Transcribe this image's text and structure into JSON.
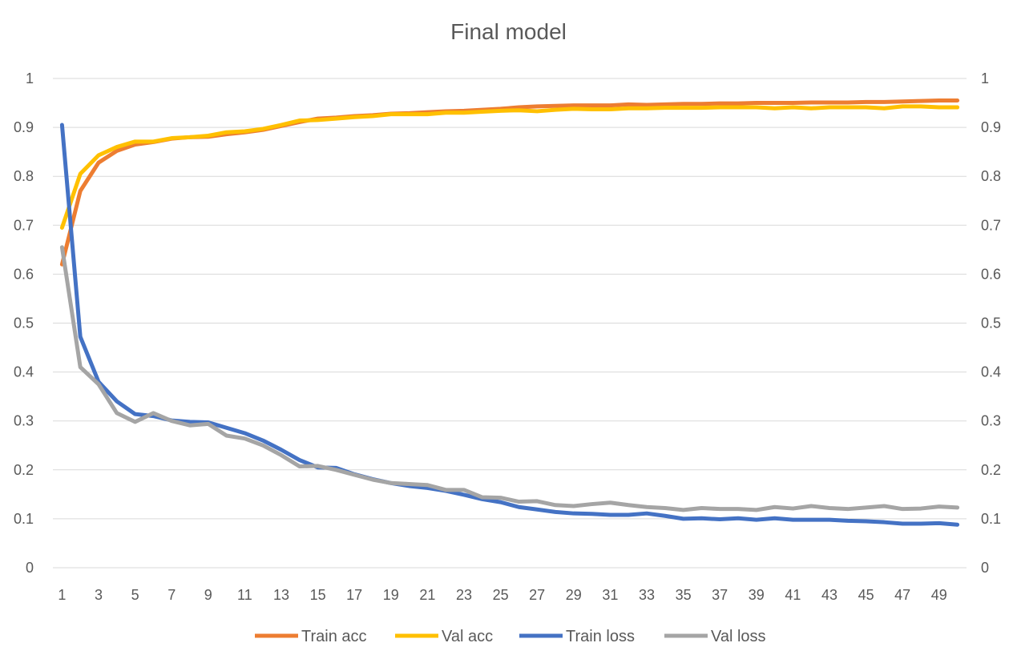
{
  "chart_data": {
    "type": "line",
    "title": "Final model",
    "xlabel": "",
    "ylabel": "",
    "x": [
      1,
      2,
      3,
      4,
      5,
      6,
      7,
      8,
      9,
      10,
      11,
      12,
      13,
      14,
      15,
      16,
      17,
      18,
      19,
      20,
      21,
      22,
      23,
      24,
      25,
      26,
      27,
      28,
      29,
      30,
      31,
      32,
      33,
      34,
      35,
      36,
      37,
      38,
      39,
      40,
      41,
      42,
      43,
      44,
      45,
      46,
      47,
      48,
      49,
      50
    ],
    "x_tick_labels": [
      "1",
      "3",
      "5",
      "7",
      "9",
      "11",
      "13",
      "15",
      "17",
      "19",
      "21",
      "23",
      "25",
      "27",
      "29",
      "31",
      "33",
      "35",
      "37",
      "39",
      "41",
      "43",
      "45",
      "47",
      "49"
    ],
    "y_left_ticks": [
      "0",
      "0.1",
      "0.2",
      "0.3",
      "0.4",
      "0.5",
      "0.6",
      "0.7",
      "0.8",
      "0.9",
      "1"
    ],
    "y_right_ticks": [
      "0",
      "0.1",
      "0.2",
      "0.3",
      "0.4",
      "0.5",
      "0.6",
      "0.7",
      "0.8",
      "0.9",
      "1"
    ],
    "ylim": [
      0,
      1
    ],
    "grid": true,
    "legend_position": "bottom",
    "series": [
      {
        "name": "Train acc",
        "color": "#ED7D31",
        "values": [
          0.62,
          0.77,
          0.828,
          0.852,
          0.865,
          0.87,
          0.877,
          0.88,
          0.881,
          0.886,
          0.89,
          0.895,
          0.903,
          0.911,
          0.918,
          0.92,
          0.923,
          0.925,
          0.928,
          0.929,
          0.931,
          0.933,
          0.934,
          0.936,
          0.938,
          0.941,
          0.943,
          0.944,
          0.945,
          0.945,
          0.945,
          0.947,
          0.946,
          0.947,
          0.948,
          0.948,
          0.949,
          0.949,
          0.95,
          0.95,
          0.95,
          0.951,
          0.951,
          0.951,
          0.952,
          0.952,
          0.953,
          0.954,
          0.955,
          0.955
        ]
      },
      {
        "name": "Val acc",
        "color": "#FFC000",
        "values": [
          0.695,
          0.805,
          0.843,
          0.86,
          0.871,
          0.871,
          0.878,
          0.88,
          0.883,
          0.89,
          0.892,
          0.897,
          0.905,
          0.914,
          0.915,
          0.918,
          0.921,
          0.923,
          0.927,
          0.927,
          0.927,
          0.93,
          0.93,
          0.932,
          0.934,
          0.935,
          0.933,
          0.936,
          0.938,
          0.937,
          0.937,
          0.939,
          0.939,
          0.94,
          0.94,
          0.94,
          0.941,
          0.941,
          0.941,
          0.939,
          0.941,
          0.939,
          0.941,
          0.941,
          0.941,
          0.939,
          0.943,
          0.943,
          0.941,
          0.941
        ]
      },
      {
        "name": "Train loss",
        "color": "#4472C4",
        "values": [
          0.905,
          0.472,
          0.38,
          0.34,
          0.314,
          0.31,
          0.301,
          0.298,
          0.297,
          0.286,
          0.275,
          0.26,
          0.241,
          0.22,
          0.205,
          0.204,
          0.191,
          0.181,
          0.173,
          0.167,
          0.163,
          0.157,
          0.149,
          0.14,
          0.134,
          0.124,
          0.119,
          0.114,
          0.111,
          0.11,
          0.108,
          0.108,
          0.111,
          0.106,
          0.1,
          0.101,
          0.099,
          0.101,
          0.098,
          0.101,
          0.098,
          0.098,
          0.098,
          0.096,
          0.095,
          0.093,
          0.09,
          0.09,
          0.091,
          0.088
        ]
      },
      {
        "name": "Val loss",
        "color": "#A5A5A5",
        "values": [
          0.655,
          0.41,
          0.375,
          0.316,
          0.298,
          0.316,
          0.3,
          0.291,
          0.294,
          0.27,
          0.264,
          0.25,
          0.23,
          0.207,
          0.208,
          0.2,
          0.19,
          0.18,
          0.173,
          0.171,
          0.169,
          0.159,
          0.159,
          0.144,
          0.143,
          0.135,
          0.136,
          0.128,
          0.126,
          0.13,
          0.133,
          0.128,
          0.124,
          0.122,
          0.118,
          0.122,
          0.12,
          0.12,
          0.118,
          0.124,
          0.121,
          0.126,
          0.122,
          0.12,
          0.123,
          0.126,
          0.12,
          0.121,
          0.125,
          0.123
        ]
      }
    ]
  }
}
